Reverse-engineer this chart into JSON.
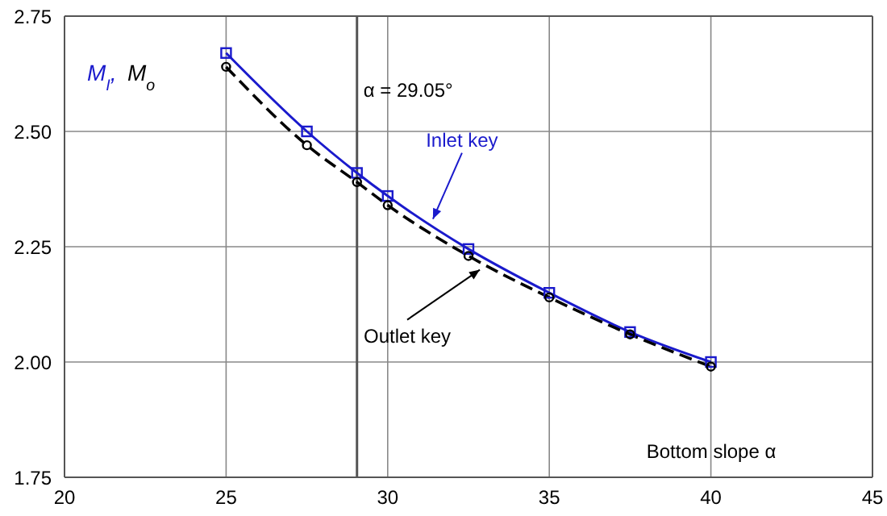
{
  "chart_data": {
    "type": "line",
    "ylabel": "M$_{I}$, M$_{o}$",
    "xlabel": "Bottom slope α",
    "x": [
      25,
      27.5,
      29.05,
      30,
      32.5,
      35,
      37.5,
      40
    ],
    "series": [
      {
        "color": "#1a1acc",
        "values": [
          2.67,
          2.5,
          2.41,
          2.36,
          2.245,
          2.15,
          2.065,
          2.0
        ],
        "marker": "square",
        "line_style": "solid"
      },
      {
        "color": "#000000",
        "values": [
          2.64,
          2.47,
          2.39,
          2.34,
          2.23,
          2.14,
          2.06,
          1.99
        ],
        "marker": "circle",
        "line_style": "dashed"
      }
    ],
    "xlim": [
      20,
      45
    ],
    "xticks": [
      20,
      25,
      30,
      35,
      40,
      45
    ],
    "ylim": [
      1.75,
      2.75
    ],
    "yticks": [
      {
        "value": 1.75,
        "label": "1.75"
      },
      {
        "value": 2.0,
        "label": "2.00"
      },
      {
        "value": 2.25,
        "label": "2.25"
      },
      {
        "value": 2.5,
        "label": "2.50"
      },
      {
        "value": 2.75,
        "label": "2.75"
      }
    ],
    "grid": true,
    "ref_lines": [
      {
        "axis": "x",
        "value": 29.05,
        "label": "α = 29.05°",
        "color": "#555555"
      }
    ],
    "annotations": [
      {
        "text": "Inlet key",
        "x": 31.4,
        "y": 2.31
      },
      {
        "text": "Outlet key",
        "x": 32.85,
        "y": 2.2
      }
    ]
  }
}
